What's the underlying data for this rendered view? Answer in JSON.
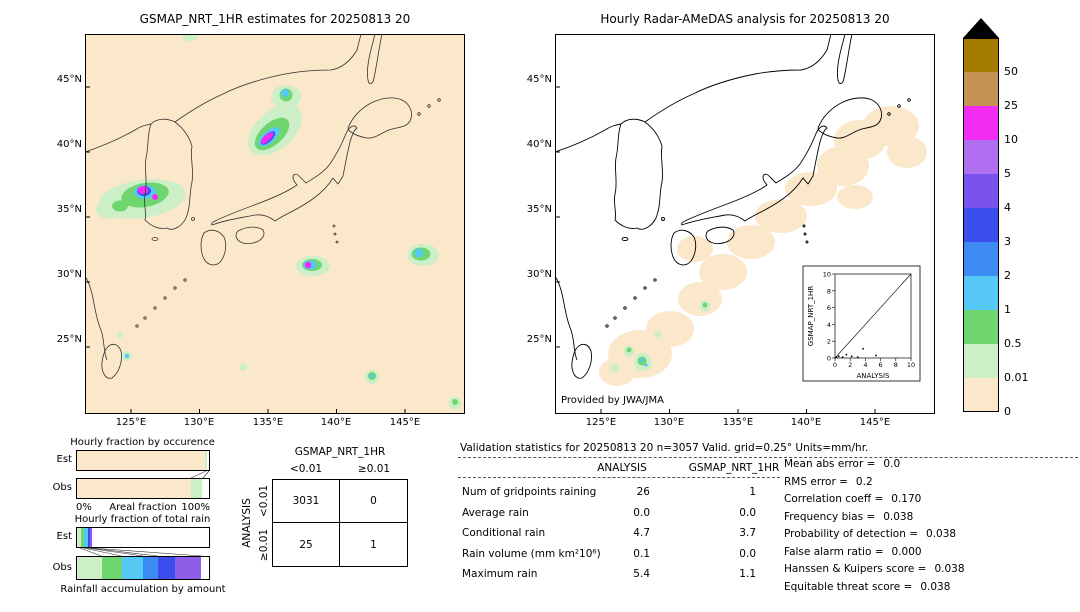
{
  "left_map": {
    "title": "GSMAP_NRT_1HR estimates for 20250813 20",
    "lat_ticks": [
      "45°N",
      "40°N",
      "35°N",
      "30°N",
      "25°N"
    ],
    "lon_ticks": [
      "125°E",
      "130°E",
      "135°E",
      "140°E",
      "145°E"
    ]
  },
  "right_map": {
    "title": "Hourly Radar-AMeDAS analysis for 20250813 20",
    "lat_ticks": [
      "45°N",
      "40°N",
      "35°N",
      "30°N",
      "25°N"
    ],
    "lon_ticks": [
      "125°E",
      "130°E",
      "135°E",
      "140°E",
      "145°E"
    ],
    "credit": "Provided by JWA/JMA",
    "inset": {
      "ylabel": "GSMAP_NRT_1HR",
      "xlabel": "ANALYSIS",
      "ticks": [
        "0",
        "2",
        "4",
        "6",
        "8",
        "10"
      ]
    }
  },
  "colorbar": {
    "levels": [
      "50",
      "25",
      "10",
      "5",
      "4",
      "3",
      "2",
      "1",
      "0.5",
      "0.01",
      "0"
    ],
    "colors": [
      "#a67c00",
      "#c49455",
      "#f32cf3",
      "#b06ff0",
      "#7a52ee",
      "#3a4fee",
      "#3d8bf2",
      "#55c8f5",
      "#6fd66f",
      "#cdefc8",
      "#fbe7c9"
    ]
  },
  "occurrence_chart": {
    "title": "Hourly fraction by occurence",
    "row_labels": [
      "Est",
      "Obs"
    ],
    "axis_left": "0%",
    "axis_label": "Areal fraction",
    "axis_right": "100%",
    "est_segments": [
      {
        "pct": 97,
        "color": "#fbe7c9"
      },
      {
        "pct": 1.5,
        "color": "#cdefc8"
      },
      {
        "pct": 1.5,
        "color": "#ffffff"
      }
    ],
    "obs_segments": [
      {
        "pct": 86,
        "color": "#fbe7c9"
      },
      {
        "pct": 9,
        "color": "#cdefc8"
      },
      {
        "pct": 5,
        "color": "#ffffff"
      }
    ]
  },
  "totalrain_chart": {
    "title": "Hourly fraction of total rain",
    "row_labels": [
      "Est",
      "Obs"
    ],
    "caption": "Rainfall accumulation by amount",
    "est_segments": [
      {
        "pct": 3,
        "color": "#cdefc8"
      },
      {
        "pct": 2.5,
        "color": "#6fd66f"
      },
      {
        "pct": 2.5,
        "color": "#55c8f5"
      },
      {
        "pct": 2,
        "color": "#3a4fee"
      },
      {
        "pct": 1.5,
        "color": "#8d5fe8"
      },
      {
        "pct": 88.5,
        "color": "#ffffff"
      }
    ],
    "obs_segments": [
      {
        "pct": 19,
        "color": "#cdefc8"
      },
      {
        "pct": 15,
        "color": "#6fd66f"
      },
      {
        "pct": 16,
        "color": "#55c8f5"
      },
      {
        "pct": 11,
        "color": "#3d8bf2"
      },
      {
        "pct": 13,
        "color": "#3a4fee"
      },
      {
        "pct": 20,
        "color": "#8d5fe8"
      },
      {
        "pct": 6,
        "color": "#ffffff"
      }
    ]
  },
  "contingency": {
    "col_group": "GSMAP_NRT_1HR",
    "row_group": "ANALYSIS",
    "col_headers": [
      "<0.01",
      "≥0.01"
    ],
    "row_headers": [
      "<0.01",
      "≥0.01"
    ],
    "values": [
      [
        "3031",
        "0"
      ],
      [
        "25",
        "1"
      ]
    ]
  },
  "validation": {
    "title": "Validation statistics for 20250813 20  n=3057 Valid. grid=0.25° Units=mm/hr.",
    "col_headers": [
      "ANALYSIS",
      "GSMAP_NRT_1HR"
    ],
    "rows": [
      {
        "label": "Num of gridpoints raining",
        "analysis": "26",
        "gsmap": "1"
      },
      {
        "label": "Average rain",
        "analysis": "0.0",
        "gsmap": "0.0"
      },
      {
        "label": "Conditional rain",
        "analysis": "4.7",
        "gsmap": "3.7"
      },
      {
        "label": "Rain volume (mm km²10⁶)",
        "analysis": "0.1",
        "gsmap": "0.0"
      },
      {
        "label": "Maximum rain",
        "analysis": "5.4",
        "gsmap": "1.1"
      }
    ]
  },
  "scores": {
    "items": [
      {
        "label": "Mean abs error =",
        "value": "0.0"
      },
      {
        "label": "RMS error =",
        "value": "0.2"
      },
      {
        "label": "Correlation coeff =",
        "value": "0.170"
      },
      {
        "label": "Frequency bias =",
        "value": "0.038"
      },
      {
        "label": "Probability of detection =",
        "value": "0.038"
      },
      {
        "label": "False alarm ratio =",
        "value": "0.000"
      },
      {
        "label": "Hanssen & Kuipers score =",
        "value": "0.038"
      },
      {
        "label": "Equitable threat score =",
        "value": "0.038"
      }
    ]
  },
  "chart_data": [
    {
      "type": "heatmap",
      "title": "GSMAP_NRT_1HR estimates for 20250813 20",
      "x_ticks": [
        "125°E",
        "130°E",
        "135°E",
        "140°E",
        "145°E"
      ],
      "y_ticks": [
        "25°N",
        "30°N",
        "35°N",
        "40°N",
        "45°N"
      ],
      "units": "mm/hr",
      "color_levels": [
        0,
        0.01,
        0.5,
        1,
        2,
        3,
        4,
        5,
        10,
        25,
        50
      ],
      "rain_cells": [
        {
          "lon": 126.3,
          "lat": 36.9,
          "peak_mmhr": 10,
          "extent_deg": 3.0
        },
        {
          "lon": 135.2,
          "lat": 41.2,
          "peak_mmhr": 10,
          "extent_deg": 2.5
        },
        {
          "lon": 136.3,
          "lat": 44.5,
          "peak_mmhr": 2,
          "extent_deg": 1.2
        },
        {
          "lon": 138.5,
          "lat": 31.3,
          "peak_mmhr": 10,
          "extent_deg": 1.2
        },
        {
          "lon": 146.5,
          "lat": 32.2,
          "peak_mmhr": 2,
          "extent_deg": 1.2
        },
        {
          "lon": 142.5,
          "lat": 22.7,
          "peak_mmhr": 2,
          "extent_deg": 0.6
        },
        {
          "lon": 124.5,
          "lat": 24.3,
          "peak_mmhr": 1,
          "extent_deg": 0.5
        },
        {
          "lon": 148.5,
          "lat": 20.7,
          "peak_mmhr": 0.5,
          "extent_deg": 0.6
        }
      ]
    },
    {
      "type": "heatmap",
      "title": "Hourly Radar-AMeDAS analysis for 20250813 20",
      "x_ticks": [
        "125°E",
        "130°E",
        "135°E",
        "140°E",
        "145°E"
      ],
      "y_ticks": [
        "25°N",
        "30°N",
        "35°N",
        "40°N",
        "45°N"
      ],
      "units": "mm/hr",
      "color_levels": [
        0,
        0.01,
        0.5,
        1,
        2,
        3,
        4,
        5,
        10,
        25,
        50
      ],
      "rain_cells": [
        {
          "lon": 127.6,
          "lat": 26.3,
          "peak_mmhr": 2,
          "extent_deg": 1.0
        },
        {
          "lon": 131.8,
          "lat": 30.4,
          "peak_mmhr": 1,
          "extent_deg": 0.6
        },
        {
          "area": "broad light band (<0.5 mm/hr) along the archipelago from Okinawa to east of Hokkaido",
          "peak_mmhr": 0.5
        }
      ]
    },
    {
      "type": "bar",
      "title": "Hourly fraction by occurence",
      "categories": [
        "Est",
        "Obs"
      ],
      "series": [
        {
          "name": "Est",
          "stacked_pct": [
            {
              "bin": "no rain",
              "pct": 97
            },
            {
              "bin": "0.01-0.5",
              "pct": 1.5
            },
            {
              "bin": ">0.5",
              "pct": 1.5
            }
          ]
        },
        {
          "name": "Obs",
          "stacked_pct": [
            {
              "bin": "no rain",
              "pct": 86
            },
            {
              "bin": "0.01-0.5",
              "pct": 9
            },
            {
              "bin": ">0.5",
              "pct": 5
            }
          ]
        }
      ],
      "xlabel": "Areal fraction",
      "xlim": [
        "0%",
        "100%"
      ]
    },
    {
      "type": "bar",
      "title": "Hourly fraction of total rain",
      "categories": [
        "Est",
        "Obs"
      ],
      "series": [
        {
          "name": "Est",
          "stacked_pct": [
            {
              "bin": "0.01-0.5",
              "pct": 3
            },
            {
              "bin": "0.5-1",
              "pct": 2.5
            },
            {
              "bin": "1-2",
              "pct": 2.5
            },
            {
              "bin": "3-4",
              "pct": 2
            },
            {
              "bin": "5-10",
              "pct": 1.5
            },
            {
              "bin": "none",
              "pct": 88.5
            }
          ]
        },
        {
          "name": "Obs",
          "stacked_pct": [
            {
              "bin": "0.01-0.5",
              "pct": 19
            },
            {
              "bin": "0.5-1",
              "pct": 15
            },
            {
              "bin": "1-2",
              "pct": 16
            },
            {
              "bin": "2-3",
              "pct": 11
            },
            {
              "bin": "3-4",
              "pct": 13
            },
            {
              "bin": "5-10",
              "pct": 20
            },
            {
              "bin": "none",
              "pct": 6
            }
          ]
        }
      ],
      "xlabel": "Rainfall accumulation by amount"
    },
    {
      "type": "table",
      "title": "Contingency table",
      "col_group": "GSMAP_NRT_1HR",
      "row_group": "ANALYSIS",
      "cols": [
        "<0.01",
        "≥0.01"
      ],
      "rows": [
        "<0.01",
        "≥0.01"
      ],
      "values": [
        [
          3031,
          0
        ],
        [
          25,
          1
        ]
      ]
    },
    {
      "type": "scatter",
      "title": "GSMAP_NRT_1HR vs ANALYSIS inset",
      "xlabel": "ANALYSIS",
      "ylabel": "GSMAP_NRT_1HR",
      "xlim": [
        0,
        10
      ],
      "ylim": [
        0,
        10
      ],
      "reference_line": "y=x",
      "points": [
        [
          0.2,
          0.1
        ],
        [
          0.5,
          0.2
        ],
        [
          1.0,
          0.1
        ],
        [
          1.5,
          0.4
        ],
        [
          2.2,
          0.2
        ],
        [
          3.0,
          0.1
        ],
        [
          3.7,
          1.1
        ],
        [
          5.4,
          0.3
        ]
      ]
    }
  ]
}
